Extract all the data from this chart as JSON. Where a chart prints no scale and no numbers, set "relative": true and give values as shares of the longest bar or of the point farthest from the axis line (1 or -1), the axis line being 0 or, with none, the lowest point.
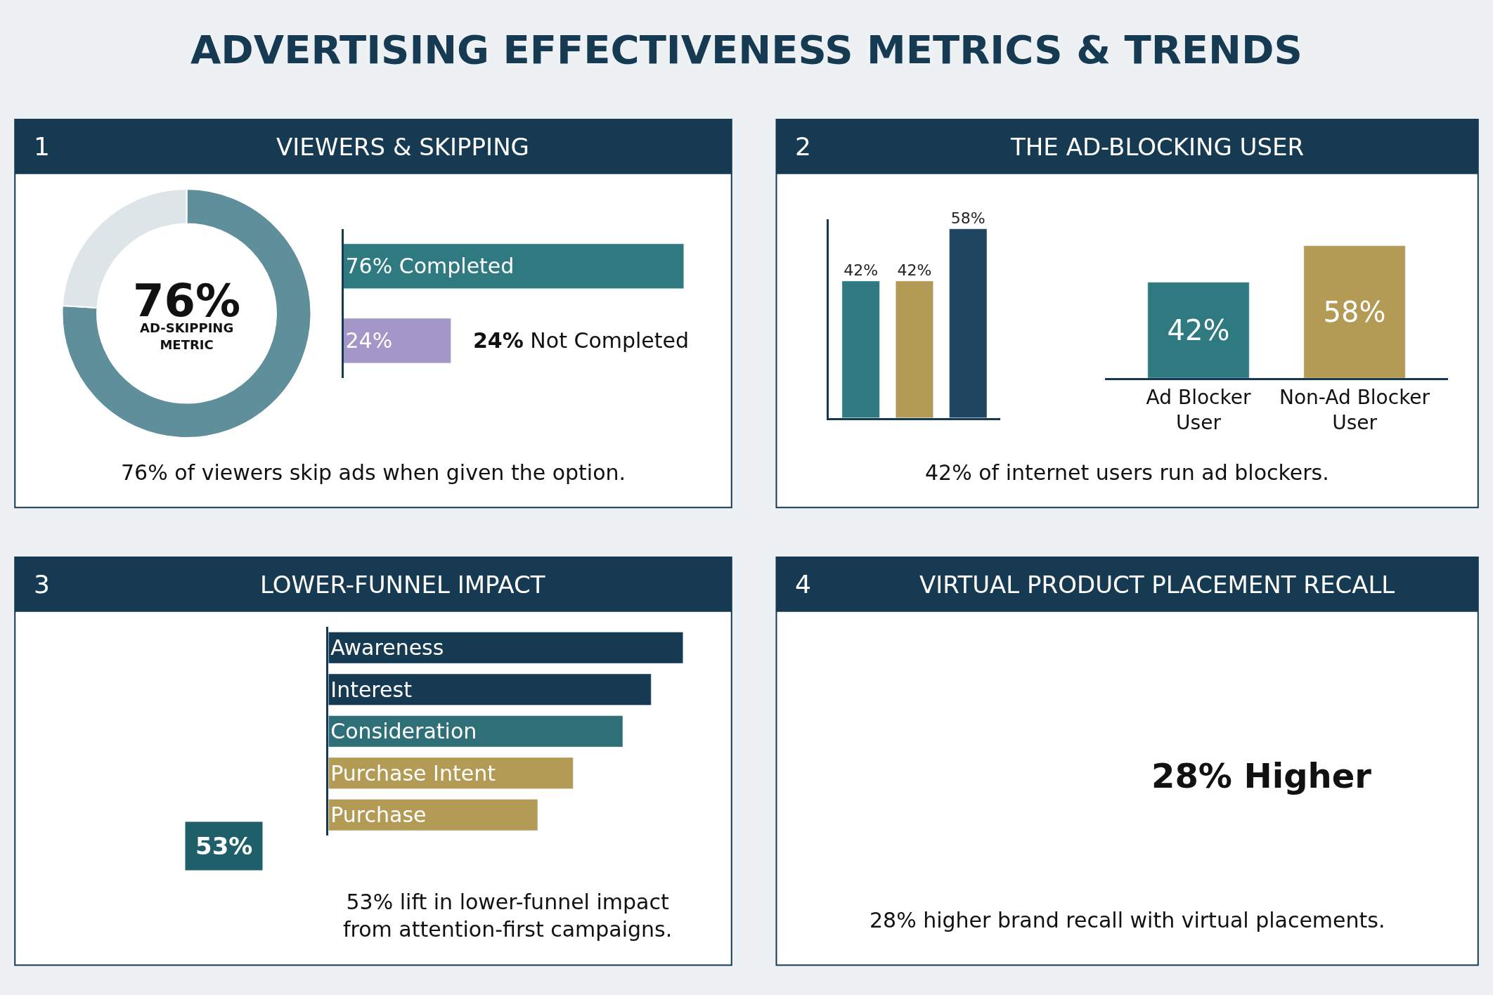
{
  "chart_data": [
    {
      "type": "other",
      "title": "ADVERTISING EFFECTIVENESS METRICS & TRENDS"
    },
    {
      "type": "donut",
      "title": "VIEWERS & SKIPPING",
      "categories": [
        "AD-SKIPPING METRIC",
        null
      ],
      "values": [
        76,
        24
      ],
      "colors": [
        "#5f8f9a",
        "#dde5e9"
      ],
      "value_labels": [
        "76%",
        null
      ],
      "annotations": [
        "1",
        "76% of viewers skip ads when given the option."
      ]
    },
    {
      "type": "bar",
      "orientation": "horizontal",
      "categories": [
        null,
        null
      ],
      "values": [
        76,
        24
      ],
      "colors": [
        "#2e7a80",
        "#a596c8"
      ],
      "tick_labels": false,
      "value_labels": [
        "76% Completed",
        "24%"
      ],
      "annotations": [
        "24% Not Completed"
      ]
    },
    {
      "type": "bar",
      "title": "THE AD-BLOCKING USER",
      "categories": [
        null,
        null,
        null
      ],
      "values": [
        42,
        42,
        58
      ],
      "colors": [
        "#2e7a80",
        "#b39a55",
        "#1f4560"
      ],
      "value_labels": [
        "42%",
        "42%",
        "58%"
      ],
      "annotations": [
        "2"
      ]
    },
    {
      "type": "bar",
      "categories": [
        "Ad Blocker User",
        "Non-Ad Blocker User"
      ],
      "values": [
        42,
        58
      ],
      "colors": [
        "#2e7a80",
        "#b39a55"
      ],
      "value_labels": [
        "42%",
        "58%"
      ],
      "annotations": [
        "42% of internet users run ad blockers."
      ]
    },
    {
      "type": "bar",
      "orientation": "horizontal",
      "relative": true,
      "title": "LOWER-FUNNEL IMPACT",
      "categories": [
        "Awareness",
        "Interest",
        "Consideration",
        "Purchase Intent",
        "Purchase"
      ],
      "values": [
        1,
        0.91,
        0.83,
        0.69,
        0.59
      ],
      "colors": [
        "#163a52",
        "#163a52",
        "#2e6f78",
        "#b39a55",
        "#b39a55"
      ],
      "annotations": [
        "3",
        "53%",
        "53% lift in lower-funnel impact\nfrom attention-first campaigns."
      ]
    },
    {
      "type": "other",
      "title": "VIRTUAL PRODUCT PLACEMENT RECALL",
      "annotations": [
        "4",
        "28% Higher",
        "28% higher brand recall with virtual placements."
      ]
    }
  ]
}
